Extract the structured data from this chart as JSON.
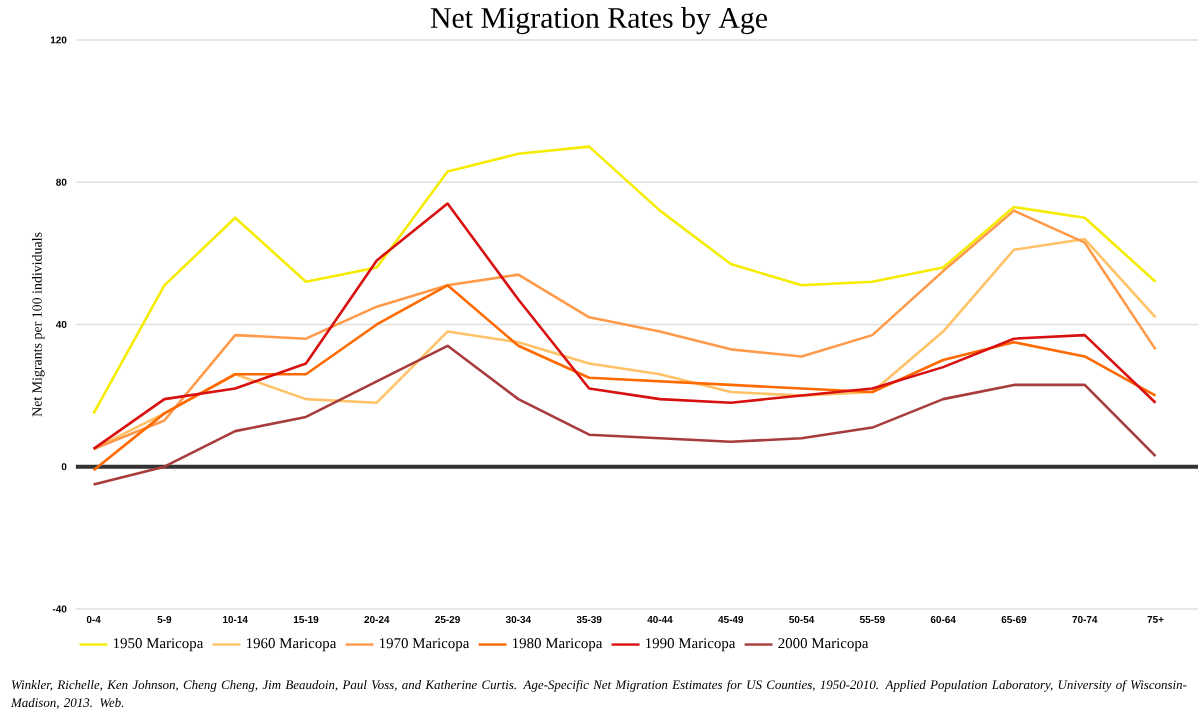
{
  "chart_data": {
    "type": "line",
    "title": "Net Migration Rates by Age",
    "ylabel": "Net Migrants per 100 individuals",
    "categories": [
      "0-4",
      "5-9",
      "10-14",
      "15-19",
      "20-24",
      "25-29",
      "30-34",
      "35-39",
      "40-44",
      "45-49",
      "50-54",
      "55-59",
      "60-64",
      "65-69",
      "70-74",
      "75+"
    ],
    "series": [
      {
        "name": "1950 Maricopa",
        "color": "#f5ec00",
        "values": [
          15,
          51,
          70,
          52,
          56,
          83,
          88,
          90,
          72,
          57,
          51,
          52,
          56,
          73,
          70,
          52
        ]
      },
      {
        "name": "1960 Maricopa",
        "color": "#ffc266",
        "values": [
          5,
          15,
          26,
          19,
          18,
          38,
          35,
          29,
          26,
          21,
          20,
          21,
          38,
          61,
          64,
          42
        ]
      },
      {
        "name": "1970 Maricopa",
        "color": "#ff9a4a",
        "values": [
          5,
          13,
          37,
          36,
          45,
          51,
          54,
          42,
          38,
          33,
          31,
          37,
          55,
          72,
          63,
          33
        ]
      },
      {
        "name": "1980 Maricopa",
        "color": "#ff6a00",
        "values": [
          -1,
          15,
          26,
          26,
          40,
          51,
          34,
          25,
          24,
          23,
          22,
          21,
          30,
          35,
          31,
          20
        ]
      },
      {
        "name": "1990 Maricopa",
        "color": "#d81010",
        "values": [
          5,
          19,
          22,
          29,
          58,
          74,
          47,
          22,
          19,
          18,
          20,
          22,
          28,
          36,
          37,
          18
        ]
      },
      {
        "name": "2000 Maricopa",
        "color": "#a83c3c",
        "values": [
          -5,
          0,
          10,
          14,
          24,
          34,
          19,
          9,
          8,
          7,
          8,
          11,
          19,
          23,
          23,
          3
        ]
      }
    ],
    "ylim": [
      -40,
      120
    ],
    "yticks": [
      -40,
      0,
      40,
      80,
      120
    ],
    "grid": "y",
    "legend": "bottom",
    "marker": "none",
    "line_style": "solid",
    "ref_lines": [
      {
        "axis": "y",
        "value": 0,
        "color": "#333333"
      }
    ],
    "annotations": [
      "Winkler, Richelle, Ken Johnson, Cheng Cheng, Jim Beaudoin, Paul Voss, and Katherine Curtis. Age-Specific Net Migration Estimates for US Counties, 1950-2010. Applied Population Laboratory, University of Wisconsin- Madison, 2013. Web."
    ]
  }
}
